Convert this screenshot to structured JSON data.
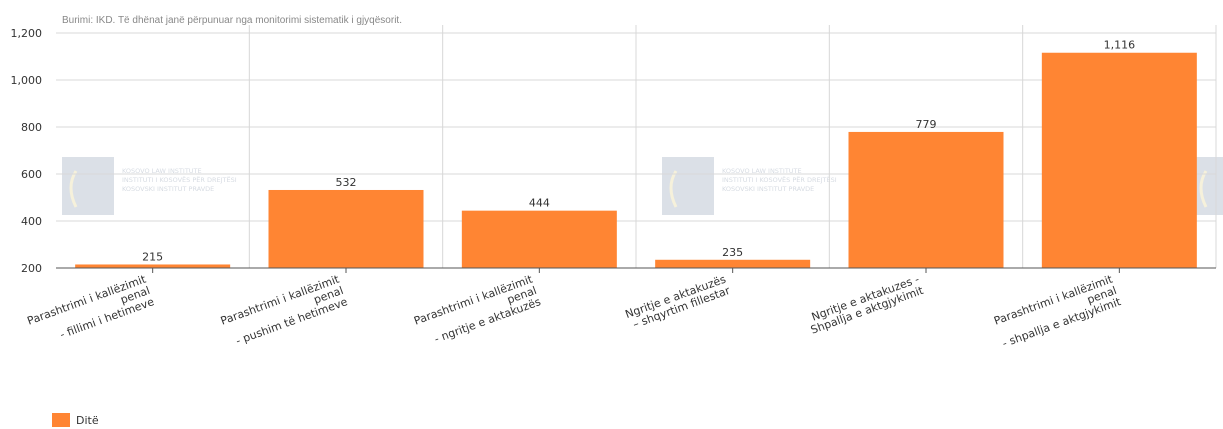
{
  "source_note": "Burimi: IKD. Të dhënat janë përpunuar nga monitorimi sistematik i gjyqësorit.",
  "watermark_lines": [
    "KOSOVO LAW INSTITUTE",
    "INSTITUTI I KOSOVËS PËR DREJTËSI",
    "KOSOVSKI INSTITUT PRAVDE"
  ],
  "colors": {
    "bar": "#ff8533",
    "grid": "#d8d8d8",
    "axis": "#555555"
  },
  "legend": {
    "label": "Ditë"
  },
  "chart_data": {
    "type": "bar",
    "title": "",
    "xlabel": "",
    "ylabel": "",
    "ylim": [
      200,
      1200
    ],
    "yticks": [
      "200",
      "400",
      "600",
      "800",
      "1,000",
      "1,200"
    ],
    "ytick_values": [
      200,
      400,
      600,
      800,
      1000,
      1200
    ],
    "categories": [
      [
        "Parashtrimi i kallëzimit",
        "penal",
        "- fillimi i hetimeve"
      ],
      [
        "Parashtrimi i kallëzimit",
        "penal",
        "- pushim të hetimeve"
      ],
      [
        "Parashtrimi i kallëzimit",
        "penal",
        "- ngritje e aktakuzës"
      ],
      [
        "Ngritje e aktakuzës",
        "– shqyrtim fillestar"
      ],
      [
        "Ngritje e aktakuzes -",
        "Shpallja e aktgjykimit"
      ],
      [
        "Parashtrimi i kallëzimit",
        "penal",
        "- shpallja e aktgjykimit"
      ]
    ],
    "series": [
      {
        "name": "Ditë",
        "values": [
          215,
          532,
          444,
          235,
          779,
          1116
        ],
        "labels": [
          "215",
          "532",
          "444",
          "235",
          "779",
          "1,116"
        ]
      }
    ],
    "grid": true,
    "legend_position": "bottom-left"
  }
}
